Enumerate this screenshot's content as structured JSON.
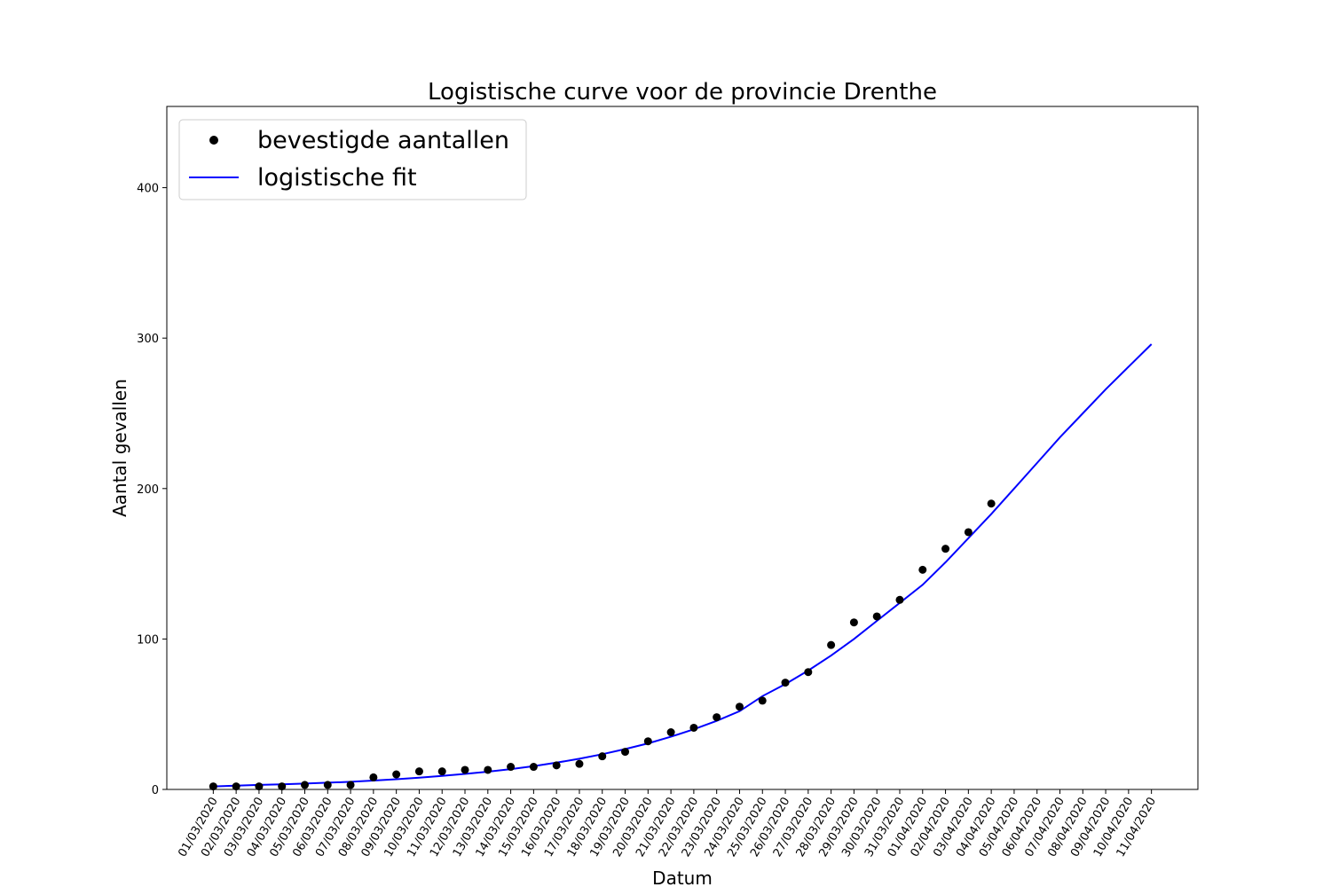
{
  "chart_data": {
    "type": "line",
    "title": "Logistische curve voor de provincie Drenthe",
    "xlabel": "Datum",
    "ylabel": "Aantal gevallen",
    "categories": [
      "01/03/2020",
      "02/03/2020",
      "03/03/2020",
      "04/03/2020",
      "05/03/2020",
      "06/03/2020",
      "07/03/2020",
      "08/03/2020",
      "09/03/2020",
      "10/03/2020",
      "11/03/2020",
      "12/03/2020",
      "13/03/2020",
      "14/03/2020",
      "15/03/2020",
      "16/03/2020",
      "17/03/2020",
      "18/03/2020",
      "19/03/2020",
      "20/03/2020",
      "21/03/2020",
      "22/03/2020",
      "23/03/2020",
      "24/03/2020",
      "25/03/2020",
      "26/03/2020",
      "27/03/2020",
      "28/03/2020",
      "29/03/2020",
      "30/03/2020",
      "31/03/2020",
      "01/04/2020",
      "02/04/2020",
      "03/04/2020",
      "04/04/2020",
      "05/04/2020",
      "06/04/2020",
      "07/04/2020",
      "08/04/2020",
      "09/04/2020",
      "10/04/2020",
      "11/04/2020"
    ],
    "series": [
      {
        "name": "bevestigde aantallen",
        "color": "#000000",
        "style": "marker",
        "values": [
          2,
          2,
          2,
          2,
          3,
          3,
          3,
          8,
          10,
          12,
          12,
          13,
          13,
          15,
          15,
          16,
          17,
          22,
          25,
          32,
          38,
          41,
          48,
          55,
          59,
          71,
          78,
          96,
          111,
          115,
          126,
          146,
          160,
          171,
          190,
          null,
          null,
          null,
          null,
          null,
          null,
          null
        ]
      },
      {
        "name": "logistische fit",
        "color": "#0000ff",
        "style": "line",
        "values": [
          2,
          2.5,
          3,
          3.4,
          3.9,
          4.5,
          5.1,
          5.9,
          6.8,
          7.8,
          9,
          10.3,
          11.8,
          13.5,
          15.5,
          17.8,
          20.4,
          23.4,
          26.8,
          30.6,
          35,
          40,
          45.6,
          52,
          62,
          70,
          79,
          89,
          100,
          112,
          124,
          136,
          151,
          167,
          183,
          200,
          217,
          234,
          250,
          266,
          281,
          296
        ]
      }
    ],
    "ylim": [
      0,
      454
    ],
    "yticks": [
      0,
      100,
      200,
      300,
      400
    ],
    "legend": "upper left"
  }
}
